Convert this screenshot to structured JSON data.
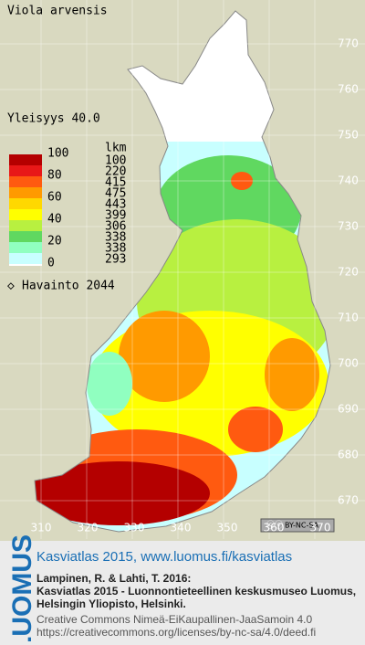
{
  "header": {
    "species": "Viola arvensis",
    "frequency": "Yleisyys 40.0"
  },
  "legend": {
    "scale_labels": [
      "100",
      "80",
      "60",
      "40",
      "20",
      "0"
    ],
    "count_title": "lkm",
    "bands": [
      {
        "color": "#b40000",
        "count": "100"
      },
      {
        "color": "#e81818",
        "count": "220"
      },
      {
        "color": "#ff5a10",
        "count": "415"
      },
      {
        "color": "#ff9a00",
        "count": "475"
      },
      {
        "color": "#ffd800",
        "count": "443"
      },
      {
        "color": "#ffff00",
        "count": "399"
      },
      {
        "color": "#b8f040",
        "count": "306"
      },
      {
        "color": "#60d860",
        "count": "338"
      },
      {
        "color": "#90ffc0",
        "count": "338"
      },
      {
        "color": "#c8ffff",
        "count": "293"
      }
    ],
    "observations": "Havainto 2044"
  },
  "axes": {
    "y_labels": [
      "770",
      "760",
      "750",
      "740",
      "730",
      "720",
      "710",
      "700",
      "690",
      "680",
      "670"
    ],
    "x_labels": [
      "310",
      "320",
      "330",
      "340",
      "350",
      "360",
      "370"
    ]
  },
  "license_badge": "BY-NC-SA",
  "footer": {
    "brand": "LUOMUS",
    "link": "Kasviatlas 2015, www.luomus.fi/kasviatlas",
    "citation": [
      "Lampinen, R. & Lahti, T. 2016:",
      "Kasviatlas 2015 - Luonnontieteellinen keskusmuseo Luomus,",
      "Helsingin Yliopisto, Helsinki."
    ],
    "license": [
      "Creative Commons Nimeä-EiKaupallinen-JaaSamoin 4.0",
      "https://creativecommons.org/licenses/by-nc-sa/4.0/deed.fi"
    ]
  }
}
